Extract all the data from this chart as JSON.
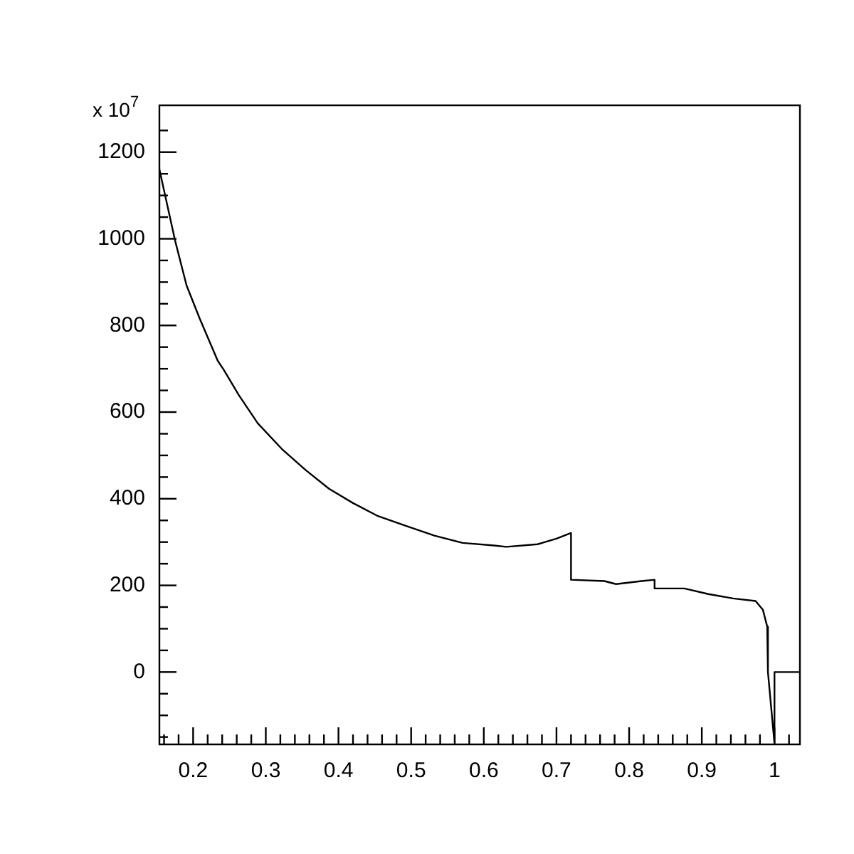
{
  "chart_data": {
    "type": "line",
    "annotations": [
      "x 10$^{7}$"
    ],
    "x": [
      0.1536,
      0.175,
      0.191,
      0.209,
      0.234,
      0.242,
      0.263,
      0.289,
      0.322,
      0.355,
      0.387,
      0.42,
      0.453,
      0.492,
      0.532,
      0.571,
      0.614,
      0.631,
      0.674,
      0.7,
      0.72,
      0.72,
      0.766,
      0.782,
      0.817,
      0.835,
      0.835,
      0.876,
      0.909,
      0.943,
      0.974,
      0.984,
      0.99,
      0.991,
      1.0,
      1.0,
      1.035
    ],
    "series": [
      {
        "color": "#000000",
        "values": [
          1160,
          997,
          892,
          816,
          718,
          698,
          639,
          574,
          515,
          466,
          423,
          390,
          361,
          338,
          315,
          298,
          292,
          289,
          295,
          308,
          321,
          213,
          210,
          203,
          210,
          213,
          193,
          193,
          180,
          170,
          164,
          144,
          105,
          0,
          -165,
          0,
          0
        ]
      }
    ],
    "xlim": [
      0.1536,
      1.035
    ],
    "ylim": [
      -167,
      1308
    ],
    "xticks": [
      {
        "value": 0.16,
        "label": null
      },
      {
        "value": 0.18,
        "label": null
      },
      {
        "value": 0.2,
        "label": "0.2"
      },
      {
        "value": 0.22,
        "label": null
      },
      {
        "value": 0.24,
        "label": null
      },
      {
        "value": 0.26,
        "label": null
      },
      {
        "value": 0.28,
        "label": null
      },
      {
        "value": 0.3,
        "label": "0.3"
      },
      {
        "value": 0.32,
        "label": null
      },
      {
        "value": 0.34,
        "label": null
      },
      {
        "value": 0.36,
        "label": null
      },
      {
        "value": 0.38,
        "label": null
      },
      {
        "value": 0.4,
        "label": "0.4"
      },
      {
        "value": 0.42,
        "label": null
      },
      {
        "value": 0.44,
        "label": null
      },
      {
        "value": 0.46,
        "label": null
      },
      {
        "value": 0.48,
        "label": null
      },
      {
        "value": 0.5,
        "label": "0.5"
      },
      {
        "value": 0.52,
        "label": null
      },
      {
        "value": 0.54,
        "label": null
      },
      {
        "value": 0.56,
        "label": null
      },
      {
        "value": 0.58,
        "label": null
      },
      {
        "value": 0.6,
        "label": "0.6"
      },
      {
        "value": 0.62,
        "label": null
      },
      {
        "value": 0.64,
        "label": null
      },
      {
        "value": 0.66,
        "label": null
      },
      {
        "value": 0.68,
        "label": null
      },
      {
        "value": 0.7,
        "label": "0.7"
      },
      {
        "value": 0.72,
        "label": null
      },
      {
        "value": 0.74,
        "label": null
      },
      {
        "value": 0.76,
        "label": null
      },
      {
        "value": 0.78,
        "label": null
      },
      {
        "value": 0.8,
        "label": "0.8"
      },
      {
        "value": 0.82,
        "label": null
      },
      {
        "value": 0.84,
        "label": null
      },
      {
        "value": 0.86,
        "label": null
      },
      {
        "value": 0.88,
        "label": null
      },
      {
        "value": 0.9,
        "label": "0.9"
      },
      {
        "value": 0.92,
        "label": null
      },
      {
        "value": 0.94,
        "label": null
      },
      {
        "value": 0.96,
        "label": null
      },
      {
        "value": 0.98,
        "label": null
      },
      {
        "value": 1,
        "label": "1"
      },
      {
        "value": 1.02,
        "label": null
      }
    ],
    "yticks": [
      {
        "value": -150,
        "label": null
      },
      {
        "value": -100,
        "label": null
      },
      {
        "value": -50,
        "label": null
      },
      0,
      {
        "value": 50,
        "label": null
      },
      {
        "value": 100,
        "label": null
      },
      {
        "value": 150,
        "label": null
      },
      200,
      {
        "value": 250,
        "label": null
      },
      {
        "value": 300,
        "label": null
      },
      {
        "value": 350,
        "label": null
      },
      400,
      {
        "value": 450,
        "label": null
      },
      {
        "value": 500,
        "label": null
      },
      {
        "value": 550,
        "label": null
      },
      600,
      {
        "value": 650,
        "label": null
      },
      {
        "value": 700,
        "label": null
      },
      {
        "value": 750,
        "label": null
      },
      800,
      {
        "value": 850,
        "label": null
      },
      {
        "value": 900,
        "label": null
      },
      {
        "value": 950,
        "label": null
      },
      1000,
      {
        "value": 1050,
        "label": null
      },
      {
        "value": 1100,
        "label": null
      },
      {
        "value": 1150,
        "label": null
      },
      1200,
      {
        "value": 1250,
        "label": null
      }
    ],
    "grid": false,
    "legend": false,
    "marker": "none",
    "line_style": "solid"
  }
}
